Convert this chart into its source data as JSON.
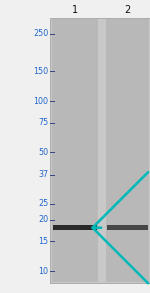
{
  "fig_width": 1.5,
  "fig_height": 2.93,
  "dpi": 100,
  "outer_bg": "#f0f0f0",
  "gel_bg_color": "#c8c8c8",
  "lane_color": "#b8b8b8",
  "gap_color": "#e0e0e0",
  "band_color": "#222222",
  "band1_alpha": 0.95,
  "band2_alpha": 0.75,
  "arrow_color": "#00b8b8",
  "mw_labels": [
    "250",
    "150",
    "100",
    "75",
    "50",
    "37",
    "25",
    "20",
    "15",
    "10"
  ],
  "mw_values": [
    250,
    150,
    100,
    75,
    50,
    37,
    25,
    20,
    15,
    10
  ],
  "mw_label_color": "#2266cc",
  "mw_fontsize": 5.8,
  "lane_label_fontsize": 7.0,
  "lane_labels": [
    "1",
    "2"
  ],
  "ylim_log_min": 8.5,
  "ylim_log_max": 310
}
